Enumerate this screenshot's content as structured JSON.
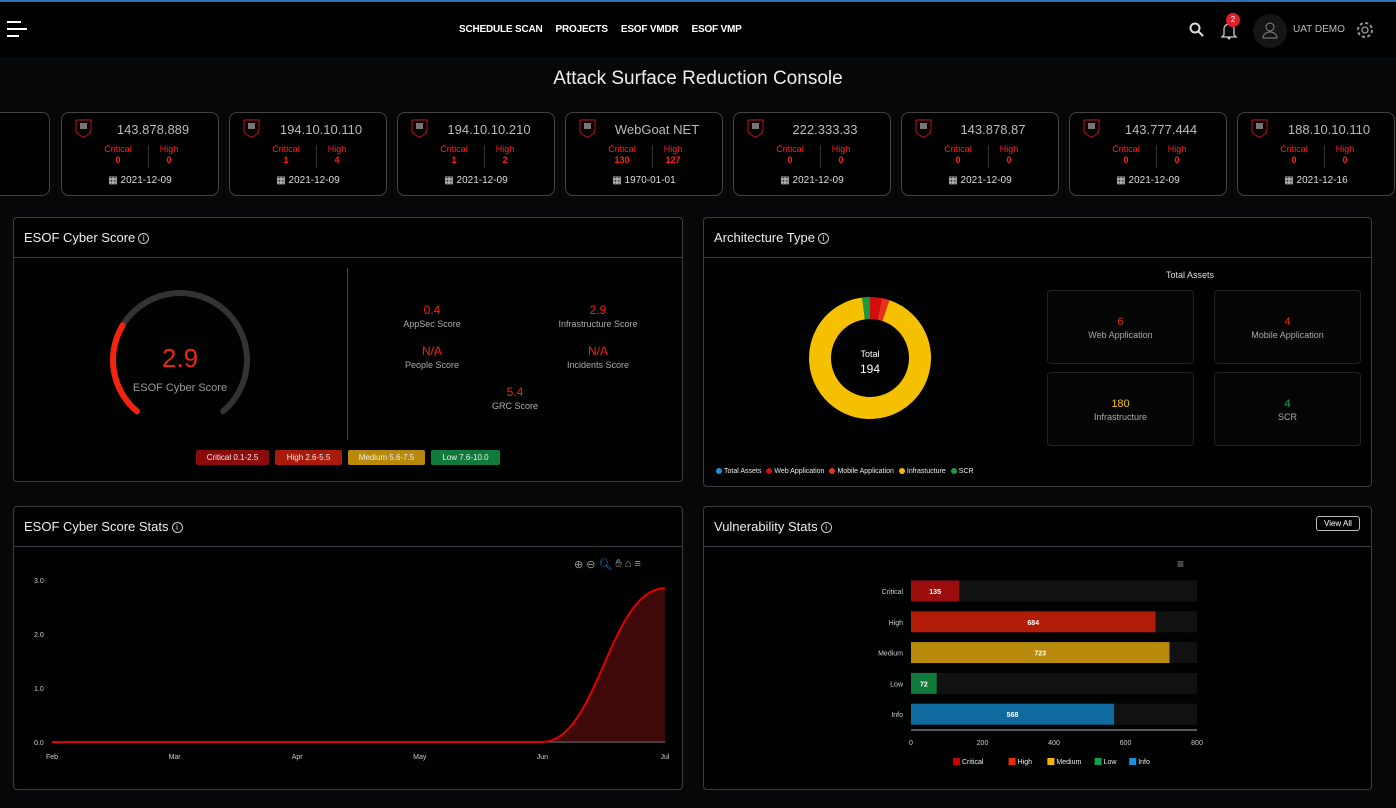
{
  "nav": {
    "items": [
      "SCHEDULE SCAN",
      "PROJECTS",
      "ESOF VMDR",
      "ESOF VMP"
    ],
    "notification_count": "2",
    "user": "UAT DEMO"
  },
  "page_title": "Attack Surface Reduction Console",
  "asset_cards": [
    {
      "name": "143.878.889",
      "critical_label": "Critical",
      "critical": "0",
      "high_label": "High",
      "high": "0",
      "date": "2021-12-09"
    },
    {
      "name": "194.10.10.110",
      "critical_label": "Critical",
      "critical": "1",
      "high_label": "High",
      "high": "4",
      "date": "2021-12-09"
    },
    {
      "name": "194.10.10.210",
      "critical_label": "Critical",
      "critical": "1",
      "high_label": "High",
      "high": "2",
      "date": "2021-12-09"
    },
    {
      "name": "WebGoat NET",
      "critical_label": "Critical",
      "critical": "130",
      "high_label": "High",
      "high": "127",
      "date": "1970-01-01"
    },
    {
      "name": "222.333.33",
      "critical_label": "Critical",
      "critical": "0",
      "high_label": "High",
      "high": "0",
      "date": "2021-12-09"
    },
    {
      "name": "143.878.87",
      "critical_label": "Critical",
      "critical": "0",
      "high_label": "High",
      "high": "0",
      "date": "2021-12-09"
    },
    {
      "name": "143.777.444",
      "critical_label": "Critical",
      "critical": "0",
      "high_label": "High",
      "high": "0",
      "date": "2021-12-09"
    },
    {
      "name": "188.10.10.110",
      "critical_label": "Critical",
      "critical": "0",
      "high_label": "High",
      "high": "0",
      "date": "2021-12-16"
    }
  ],
  "cyber_score": {
    "title": "ESOF Cyber Score",
    "value": "2.9",
    "gauge_fraction": 0.29,
    "label": "ESOF Cyber Score",
    "scores": [
      {
        "value": "0.4",
        "label": "AppSec Score"
      },
      {
        "value": "2.9",
        "label": "Infrastructure Score"
      },
      {
        "value": "N/A",
        "label": "People Score"
      },
      {
        "value": "N/A",
        "label": "Incidents Score"
      },
      {
        "value": "5.4",
        "label": "GRC Score"
      }
    ],
    "ranges": [
      {
        "label": "Critical 0.1-2.5",
        "color": "#8b0a0a"
      },
      {
        "label": "High 2.6-5.5",
        "color": "#a81a0a"
      },
      {
        "label": "Medium 5.6-7.5",
        "color": "#b8890a"
      },
      {
        "label": "Low 7.6-10.0",
        "color": "#0f7a3a"
      }
    ]
  },
  "architecture": {
    "title": "Architecture Type",
    "total_label": "Total",
    "total": "194",
    "total_assets_title": "Total Assets",
    "boxes": [
      {
        "value": "6",
        "label": "Web Application",
        "color": "#e8301e"
      },
      {
        "value": "4",
        "label": "Mobile Application",
        "color": "#e8301e"
      },
      {
        "value": "180",
        "label": "Infrastructure",
        "color": "#f5c000"
      },
      {
        "value": "4",
        "label": "SCR",
        "color": "#1faa4a"
      }
    ],
    "legend": [
      {
        "label": "Total Assets",
        "color": "#1e8ee0"
      },
      {
        "label": "Web Application",
        "color": "#d10d0d"
      },
      {
        "label": "Mobile Application",
        "color": "#e8301e"
      },
      {
        "label": "Infrastucture",
        "color": "#f5b800"
      },
      {
        "label": "SCR",
        "color": "#1a9a40"
      }
    ]
  },
  "chart_data": [
    {
      "type": "area",
      "title": "ESOF Cyber Score Stats",
      "categories": [
        "Feb",
        "Mar",
        "Apr",
        "May",
        "Jun",
        "Jul"
      ],
      "values": [
        0,
        0,
        0,
        0,
        0,
        2.85
      ],
      "yticks": [
        "0.0",
        "1.0",
        "2.0",
        "3.0"
      ],
      "ylim": [
        0,
        3
      ],
      "color": "#e00000"
    },
    {
      "type": "bar",
      "title": "Vulnerability Stats",
      "categories": [
        "Critical",
        "High",
        "Medium",
        "Low",
        "Info"
      ],
      "values": [
        135,
        684,
        723,
        72,
        568
      ],
      "colors": [
        "#9b0c0c",
        "#b01c08",
        "#b8890a",
        "#0f7a3a",
        "#0f6aa0"
      ],
      "legend_colors": [
        "#d10000",
        "#f02a00",
        "#f5b800",
        "#12a04a",
        "#1a8ee0"
      ],
      "xticks": [
        "0",
        "200",
        "400",
        "600",
        "800"
      ],
      "xlim": [
        0,
        800
      ],
      "orientation": "horizontal"
    }
  ],
  "vuln": {
    "view_all": "View All"
  }
}
